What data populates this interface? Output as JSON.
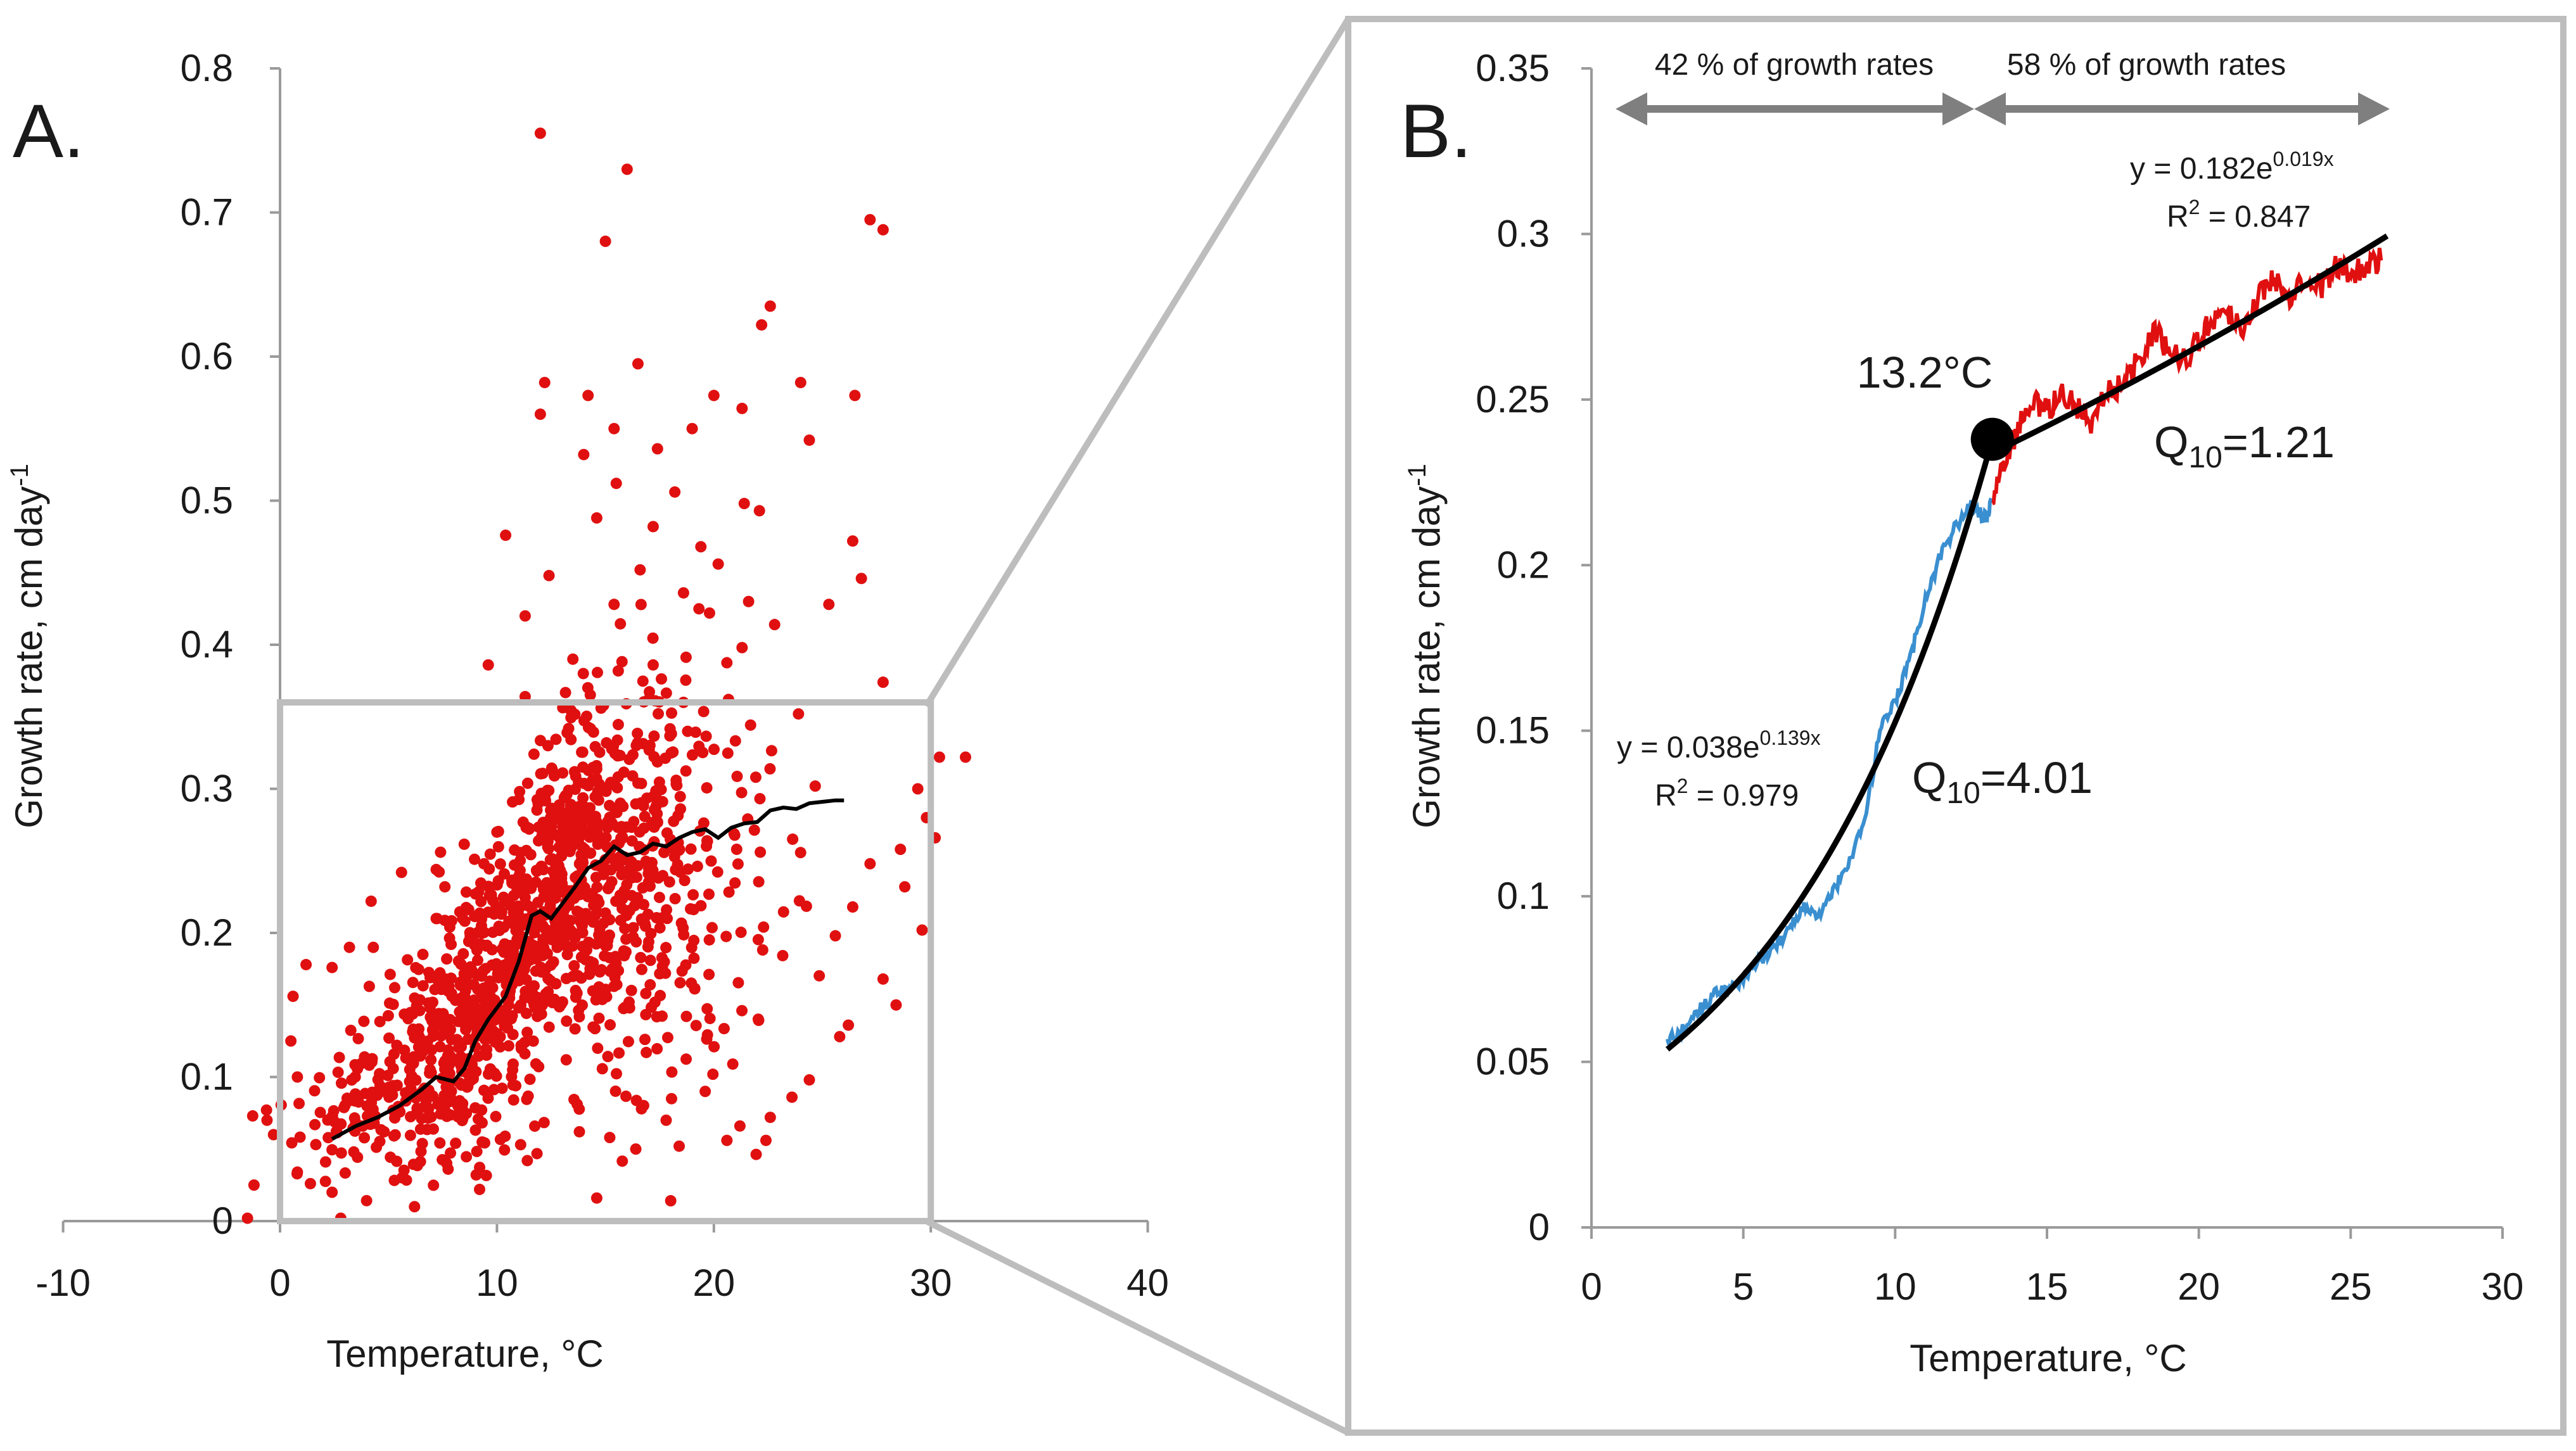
{
  "chart_data": [
    {
      "panel": "A.",
      "type": "scatter",
      "xlabel": "Temperature, °C",
      "ylabel": "Growth rate, cm day",
      "ylabel_sup": "-1",
      "xlim": [
        -10,
        40
      ],
      "ylim": [
        0,
        0.8
      ],
      "xticks": [
        "-10",
        "0",
        "10",
        "20",
        "30",
        "40"
      ],
      "yticks": [
        "0",
        "0.1",
        "0.2",
        "0.3",
        "0.4",
        "0.5",
        "0.6",
        "0.7",
        "0.8"
      ],
      "grid": false,
      "highlight_box": {
        "x": [
          0,
          30
        ],
        "y": [
          0,
          0.36
        ]
      },
      "series": [
        {
          "name": "observations",
          "style": "points",
          "color": "#e01010",
          "points": [
            [
              12,
              0.755
            ],
            [
              16,
              0.73
            ],
            [
              15,
              0.68
            ],
            [
              27.2,
              0.695
            ],
            [
              27.8,
              0.688
            ],
            [
              22.6,
              0.635
            ],
            [
              22.2,
              0.622
            ],
            [
              16.5,
              0.595
            ],
            [
              12.2,
              0.582
            ],
            [
              14.2,
              0.573
            ],
            [
              20,
              0.573
            ],
            [
              24,
              0.582
            ],
            [
              26.5,
              0.573
            ],
            [
              21.3,
              0.564
            ],
            [
              12,
              0.56
            ],
            [
              15.4,
              0.55
            ],
            [
              19,
              0.55
            ],
            [
              17.4,
              0.536
            ],
            [
              24.4,
              0.542
            ],
            [
              14,
              0.532
            ],
            [
              15.5,
              0.512
            ],
            [
              18.2,
              0.506
            ],
            [
              21.4,
              0.498
            ],
            [
              22.1,
              0.493
            ],
            [
              10.4,
              0.476
            ],
            [
              14.6,
              0.488
            ],
            [
              17.2,
              0.482
            ],
            [
              19.4,
              0.468
            ],
            [
              26.4,
              0.472
            ],
            [
              20.2,
              0.456
            ],
            [
              12.4,
              0.448
            ],
            [
              16.6,
              0.452
            ],
            [
              26.8,
              0.446
            ],
            [
              18.6,
              0.436
            ],
            [
              21.6,
              0.43
            ],
            [
              11.3,
              0.42
            ],
            [
              15.4,
              0.428
            ],
            [
              19.8,
              0.422
            ],
            [
              22.8,
              0.414
            ],
            [
              25.3,
              0.428
            ],
            [
              9.6,
              0.386
            ],
            [
              13.5,
              0.39
            ],
            [
              17.2,
              0.386
            ],
            [
              21.3,
              0.398
            ],
            [
              27.8,
              0.374
            ],
            [
              11.3,
              0.364
            ],
            [
              14.8,
              0.356
            ],
            [
              18.6,
              0.36
            ],
            [
              23.9,
              0.352
            ],
            [
              30.4,
              0.322
            ],
            [
              31.6,
              0.322
            ],
            [
              29.4,
              0.3
            ],
            [
              29.8,
              0.28
            ],
            [
              30.2,
              0.266
            ],
            [
              28.6,
              0.258
            ],
            [
              27.2,
              0.248
            ],
            [
              28.8,
              0.232
            ],
            [
              26.4,
              0.218
            ],
            [
              29.6,
              0.202
            ],
            [
              25.6,
              0.198
            ],
            [
              27.8,
              0.168
            ],
            [
              28.4,
              0.15
            ],
            [
              26.2,
              0.136
            ],
            [
              25.8,
              0.128
            ],
            [
              24.4,
              0.098
            ],
            [
              23.6,
              0.086
            ],
            [
              22.6,
              0.072
            ],
            [
              21.2,
              0.066
            ],
            [
              22.4,
              0.056
            ],
            [
              20.6,
              0.056
            ],
            [
              18.4,
              0.052
            ],
            [
              15.2,
              0.058
            ],
            [
              14.6,
              0.016
            ],
            [
              8.2,
              0.08
            ],
            [
              7.2,
              0.244
            ],
            [
              7.6,
              0.232
            ],
            [
              9.4,
              0.248
            ],
            [
              7.4,
              0.256
            ],
            [
              7.2,
              0.21
            ],
            [
              5.6,
              0.242
            ],
            [
              4.2,
              0.222
            ],
            [
              4.3,
              0.19
            ],
            [
              3.2,
              0.19
            ],
            [
              2.4,
              0.176
            ],
            [
              1.2,
              0.178
            ],
            [
              0.6,
              0.156
            ],
            [
              0.5,
              0.125
            ],
            [
              0.8,
              0.1
            ],
            [
              -0.6,
              0.07
            ],
            [
              -0.3,
              0.06
            ],
            [
              -1.2,
              0.025
            ],
            [
              -1.5,
              0.002
            ],
            [
              2.4,
              0.02
            ],
            [
              2.8,
              0.002
            ],
            [
              6.2,
              0.01
            ],
            [
              1.4,
              0.026
            ],
            [
              0.8,
              0.034
            ],
            [
              9.2,
              0.022
            ],
            [
              11.4,
              0.042
            ],
            [
              13.8,
              0.062
            ],
            [
              16.4,
              0.05
            ],
            [
              17.8,
              0.07
            ],
            [
              19.6,
              0.09
            ],
            [
              4.8,
              0.062
            ],
            [
              3.4,
              0.048
            ],
            [
              5.2,
              0.094
            ],
            [
              6.6,
              0.118
            ],
            [
              8.4,
              0.142
            ],
            [
              9.8,
              0.162
            ],
            [
              11.8,
              0.182
            ]
          ]
        },
        {
          "name": "running mean",
          "style": "line",
          "color": "#000000",
          "points": [
            [
              2.4,
              0.057
            ],
            [
              3.5,
              0.066
            ],
            [
              4.5,
              0.072
            ],
            [
              5.5,
              0.08
            ],
            [
              6.5,
              0.091
            ],
            [
              7.2,
              0.1
            ],
            [
              8,
              0.097
            ],
            [
              8.5,
              0.106
            ],
            [
              9,
              0.125
            ],
            [
              9.6,
              0.14
            ],
            [
              10.4,
              0.156
            ],
            [
              11,
              0.18
            ],
            [
              11.6,
              0.212
            ],
            [
              12,
              0.215
            ],
            [
              12.5,
              0.21
            ],
            [
              13,
              0.22
            ],
            [
              13.6,
              0.232
            ],
            [
              14.2,
              0.245
            ],
            [
              14.8,
              0.25
            ],
            [
              15.4,
              0.26
            ],
            [
              16,
              0.254
            ],
            [
              16.6,
              0.256
            ],
            [
              17.2,
              0.262
            ],
            [
              17.8,
              0.26
            ],
            [
              18.4,
              0.266
            ],
            [
              19,
              0.27
            ],
            [
              19.6,
              0.272
            ],
            [
              20.2,
              0.266
            ],
            [
              20.8,
              0.273
            ],
            [
              21.4,
              0.276
            ],
            [
              22,
              0.277
            ],
            [
              22.6,
              0.285
            ],
            [
              23.2,
              0.287
            ],
            [
              23.8,
              0.286
            ],
            [
              24.4,
              0.29
            ],
            [
              25,
              0.291
            ],
            [
              25.6,
              0.292
            ],
            [
              26,
              0.292
            ]
          ]
        }
      ]
    },
    {
      "panel": "B.",
      "type": "line",
      "xlabel": "Temperature, °C",
      "ylabel": "Growth rate, cm day",
      "ylabel_sup": "-1",
      "xlim": [
        0,
        30
      ],
      "ylim": [
        0,
        0.35
      ],
      "xticks": [
        "0",
        "5",
        "10",
        "15",
        "20",
        "25",
        "30"
      ],
      "yticks": [
        "0",
        "0.05",
        "0.1",
        "0.15",
        "0.2",
        "0.25",
        "0.3",
        "0.35"
      ],
      "grid": false,
      "breakpoint": {
        "x": 13.2,
        "y": 0.238,
        "label": "13.2°C"
      },
      "series": [
        {
          "name": "running mean below 13.2 °C",
          "color": "#3a8fd0",
          "x": [
            2.5,
            3,
            3.5,
            4,
            4.5,
            5,
            5.5,
            6,
            6.5,
            7,
            7.5,
            8,
            8.5,
            9,
            9.5,
            10,
            10.5,
            11,
            11.5,
            12,
            12.5,
            13,
            13.2
          ],
          "y": [
            0.056,
            0.06,
            0.065,
            0.07,
            0.072,
            0.075,
            0.08,
            0.085,
            0.09,
            0.097,
            0.094,
            0.102,
            0.11,
            0.123,
            0.15,
            0.158,
            0.172,
            0.19,
            0.203,
            0.212,
            0.218,
            0.214,
            0.22
          ]
        },
        {
          "name": "running mean above 13.2 °C",
          "color": "#e01010",
          "x": [
            13.2,
            13.6,
            14,
            14.5,
            15,
            15.5,
            16,
            16.5,
            17,
            17.5,
            18,
            18.5,
            19,
            19.5,
            20,
            20.5,
            21,
            21.5,
            22,
            22.5,
            23,
            23.5,
            24,
            24.5,
            25,
            25.5,
            26
          ],
          "y": [
            0.22,
            0.232,
            0.24,
            0.25,
            0.246,
            0.252,
            0.248,
            0.243,
            0.252,
            0.255,
            0.262,
            0.27,
            0.266,
            0.262,
            0.268,
            0.275,
            0.276,
            0.272,
            0.282,
            0.286,
            0.282,
            0.288,
            0.284,
            0.29,
            0.288,
            0.291,
            0.292
          ]
        },
        {
          "name": "exponential fit below",
          "color": "#000000",
          "fit": {
            "a": 0.038,
            "b": 0.139,
            "from": 2.5,
            "to": 13.2
          }
        },
        {
          "name": "exponential fit above",
          "color": "#000000",
          "fit": {
            "a": 0.182,
            "b": 0.019,
            "from": 13.2,
            "to": 26.2
          }
        }
      ],
      "annotations": {
        "range_left": "42 % of growth rates",
        "range_right": "58 % of growth rates",
        "eq_low": "y = 0.038e",
        "eq_low_exp": "0.139x",
        "r2_low": "R",
        "r2_low_value": " = 0.979",
        "q10_low": "=4.01",
        "eq_high": "y = 0.182e",
        "eq_high_exp": "0.019x",
        "r2_high": "R",
        "r2_high_value": " = 0.847",
        "q10_high": "=1.21",
        "q10_symbol": "Q",
        "q10_sub": "10",
        "r2_sup": "2"
      }
    }
  ]
}
